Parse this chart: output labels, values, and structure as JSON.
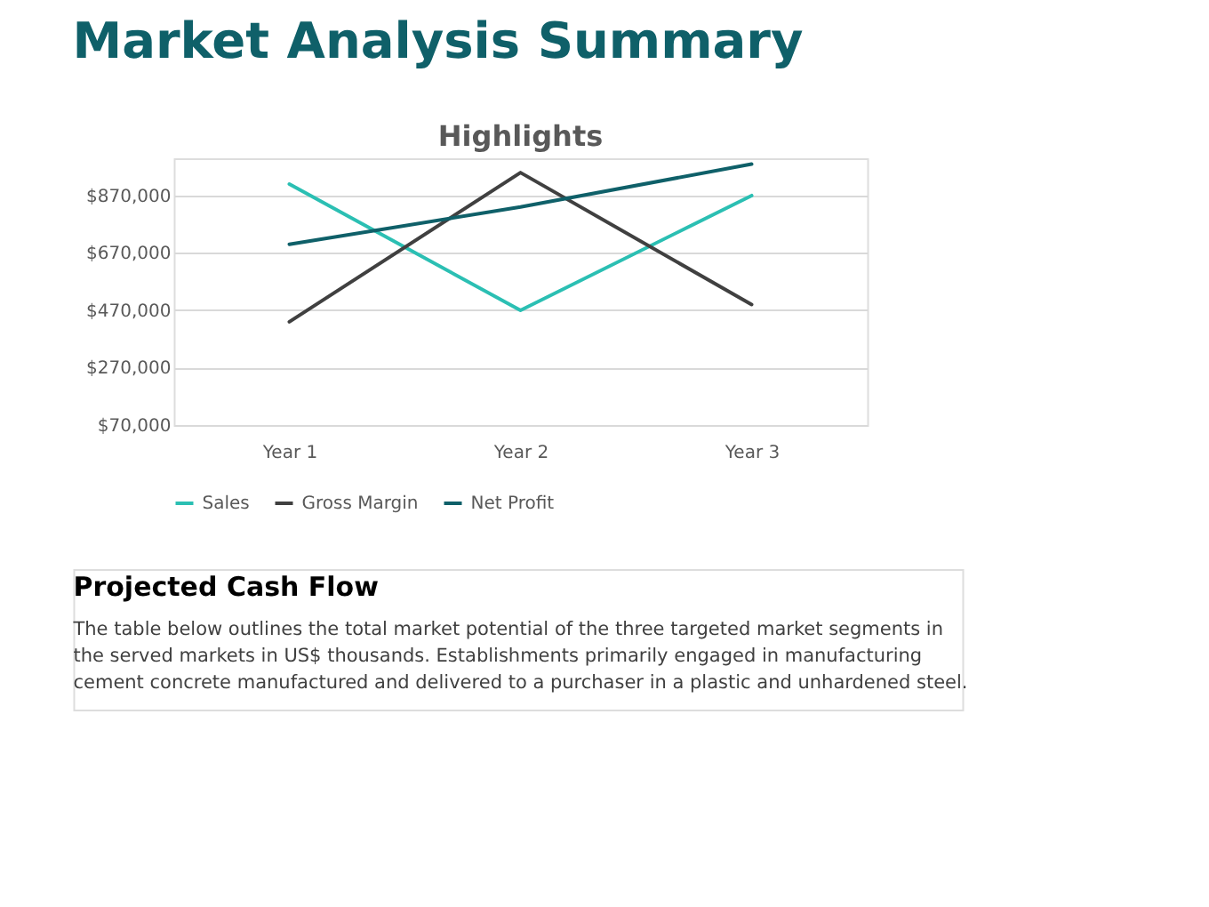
{
  "chart_data": {
    "type": "line",
    "title": "Market Analysis Summary",
    "subtitle": "Highlights",
    "categories": [
      "Year 1",
      "Year 2",
      "Year 3"
    ],
    "series": [
      {
        "name": "Sales",
        "color": "#2bbfb3",
        "values": [
          910000,
          470000,
          870000
        ]
      },
      {
        "name": "Gross Margin",
        "color": "#404040",
        "values": [
          430000,
          950000,
          490000
        ]
      },
      {
        "name": "Net Profit",
        "color": "#0f6069",
        "values": [
          700000,
          830000,
          980000
        ]
      }
    ],
    "ylim": [
      70000,
      1000000
    ],
    "yticks": [
      {
        "value": 70000,
        "label": "$70,000"
      },
      {
        "value": 270000,
        "label": "$270,000"
      },
      {
        "value": 470000,
        "label": "$470,000"
      },
      {
        "value": 670000,
        "label": "$670,000"
      },
      {
        "value": 870000,
        "label": "$870,000"
      }
    ],
    "grid": "y",
    "legend": "bottom",
    "marker": "none",
    "line_style": "solid",
    "annotations": [
      "Projected Cash Flow",
      "The table below outlines the total market potential of the three targeted market segments in the served markets in US$ thousands. Establishments primarily engaged in manufacturing cement concrete manufactured and delivered to a purchaser in a plastic and unhardened steel."
    ]
  }
}
